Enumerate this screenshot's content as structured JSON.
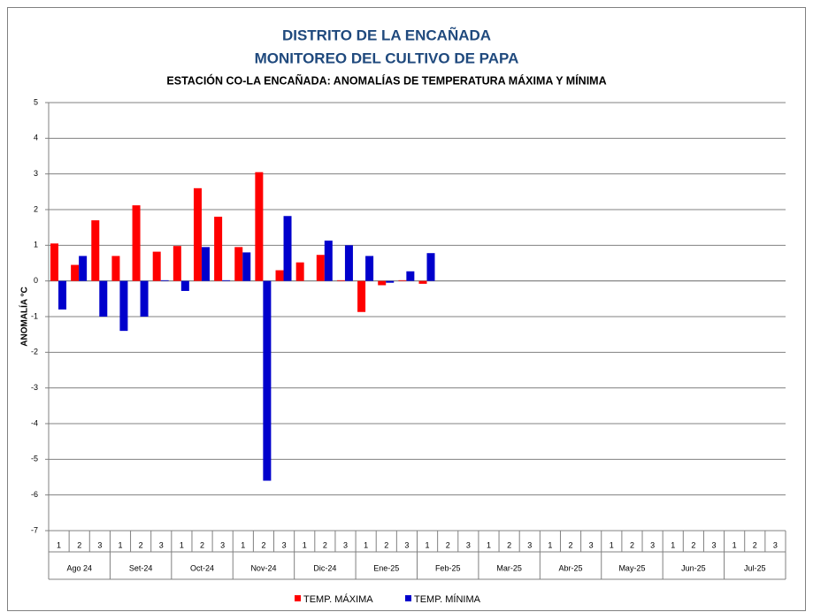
{
  "chart_data": {
    "type": "bar",
    "title": "DISTRITO DE LA ENCAÑADA",
    "subtitle": "MONITOREO DEL CULTIVO DE PAPA",
    "chart_subtitle": "ESTACIÓN CO-LA ENCAÑADA: ANOMALÍAS DE TEMPERATURA MÁXIMA Y MÍNIMA",
    "y_label": "ANOMALÍA °C",
    "categories": [
      "1",
      "2",
      "3",
      "1",
      "2",
      "3",
      "1",
      "2",
      "3",
      "1",
      "2",
      "3",
      "1",
      "2",
      "3",
      "1",
      "2",
      "3",
      "1",
      "2",
      "3",
      "1",
      "2",
      "3",
      "1",
      "2",
      "3",
      "1",
      "2",
      "3",
      "1",
      "2",
      "3",
      "1",
      "2",
      "3"
    ],
    "groups": [
      "Ago 24",
      "Set-24",
      "Oct-24",
      "Nov-24",
      "Dic-24",
      "Ene-25",
      "Feb-25",
      "Mar-25",
      "Abr-25",
      "May-25",
      "Jun-25",
      "Jul-25"
    ],
    "series": [
      {
        "name": "TEMP. MÁXIMA",
        "color": "#ff0000",
        "values": [
          1.05,
          0.45,
          1.7,
          0.7,
          2.12,
          0.82,
          0.98,
          2.6,
          1.8,
          0.95,
          3.05,
          0.3,
          0.52,
          0.73,
          0.02,
          -0.87,
          -0.12,
          0.02,
          -0.08,
          null,
          null,
          null,
          null,
          null,
          null,
          null,
          null,
          null,
          null,
          null,
          null,
          null,
          null,
          null,
          null,
          null
        ]
      },
      {
        "name": "TEMP. MÍNIMA",
        "color": "#0000cc",
        "values": [
          -0.8,
          0.7,
          -1.0,
          -1.4,
          -1.0,
          0.02,
          -0.28,
          0.95,
          0.02,
          0.8,
          -5.6,
          1.82,
          0,
          1.13,
          1.0,
          0.7,
          -0.05,
          0.27,
          0.78,
          null,
          null,
          null,
          null,
          null,
          null,
          null,
          null,
          null,
          null,
          null,
          null,
          null,
          null,
          null,
          null,
          null
        ]
      }
    ],
    "ylim": [
      -7,
      5
    ],
    "yticks": [
      -7,
      -6,
      -5,
      -4,
      -3,
      -2,
      -1,
      0,
      1,
      2,
      3,
      4,
      5
    ],
    "grid": true
  }
}
